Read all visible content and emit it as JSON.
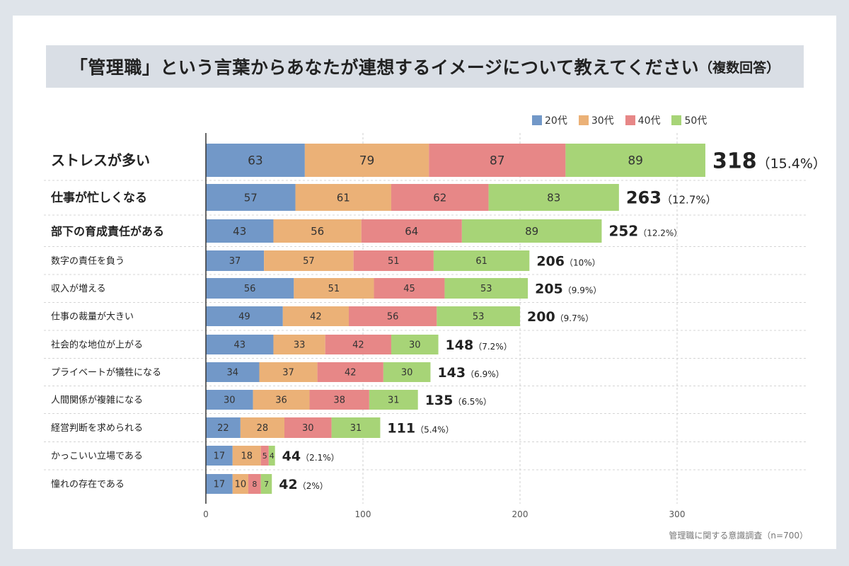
{
  "title": {
    "main": "「管理職」という言葉からあなたが連想するイメージについて教えてください",
    "sub": "（複数回答）"
  },
  "legend": [
    {
      "label": "20代",
      "color": "#7298c8"
    },
    {
      "label": "30代",
      "color": "#ebb177"
    },
    {
      "label": "40代",
      "color": "#e78787"
    },
    {
      "label": "50代",
      "color": "#a7d477"
    }
  ],
  "footnote": "管理職に関する意識調査（n=700）",
  "chart_data": {
    "type": "bar",
    "orientation": "horizontal",
    "stacked": true,
    "categories": [
      "ストレスが多い",
      "仕事が忙しくなる",
      "部下の育成責任がある",
      "数字の責任を負う",
      "収入が増える",
      "仕事の裁量が大きい",
      "社会的な地位が上がる",
      "プライベートが犠牲になる",
      "人間関係が複雑になる",
      "経営判断を求められる",
      "かっこいい立場である",
      "憧れの存在である"
    ],
    "series": [
      {
        "name": "20代",
        "values": [
          63,
          57,
          43,
          37,
          56,
          49,
          43,
          34,
          30,
          22,
          17,
          17
        ]
      },
      {
        "name": "30代",
        "values": [
          79,
          61,
          56,
          57,
          51,
          42,
          33,
          37,
          36,
          28,
          18,
          10
        ]
      },
      {
        "name": "40代",
        "values": [
          87,
          62,
          64,
          51,
          45,
          56,
          42,
          42,
          38,
          30,
          5,
          8
        ]
      },
      {
        "name": "50代",
        "values": [
          89,
          83,
          89,
          61,
          53,
          53,
          30,
          30,
          31,
          31,
          4,
          7
        ]
      }
    ],
    "totals": [
      318,
      263,
      252,
      206,
      205,
      200,
      148,
      143,
      135,
      111,
      44,
      42
    ],
    "percents": [
      "（15.4%）",
      "（12.7%）",
      "（12.2%）",
      "（10%）",
      "（9.9%）",
      "（9.7%）",
      "（7.2%）",
      "（6.9%）",
      "（6.5%）",
      "（5.4%）",
      "（2.1%）",
      "（2%）"
    ],
    "xticks": [
      0,
      100,
      200,
      300
    ],
    "xlim": [
      0,
      340
    ],
    "grid": true,
    "legend_position": "top-right"
  }
}
